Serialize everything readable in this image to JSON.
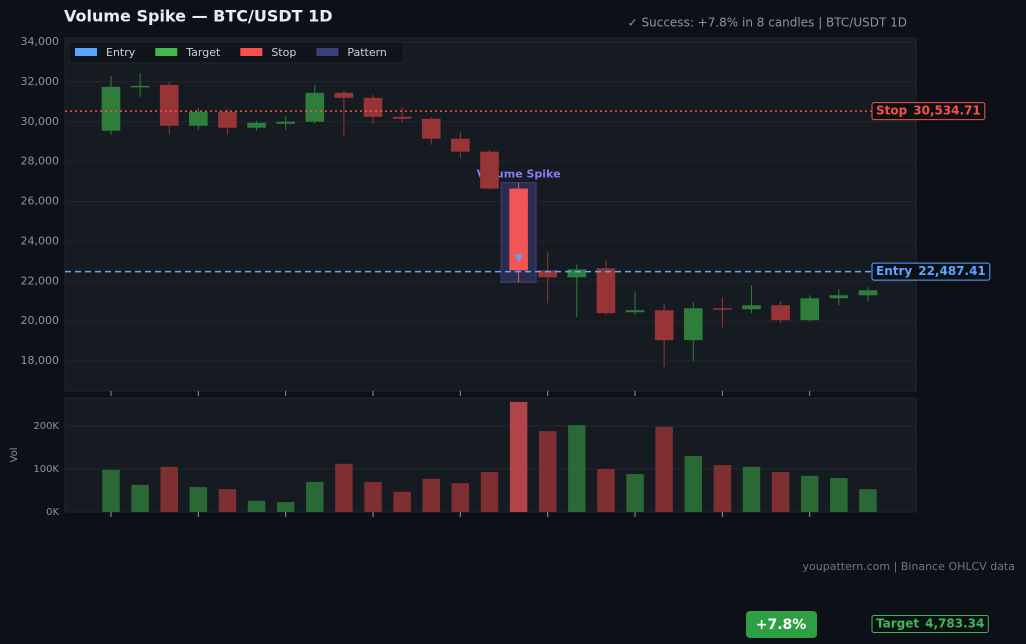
{
  "chart_data": [
    {
      "type": "candlestick",
      "title": "Volume Spike  —  BTC/USDT 1D",
      "subtitle": "✓ Success: +7.8% in 8 candles  |  BTC/USDT 1D",
      "open": [
        29550,
        31750,
        31850,
        29800,
        30500,
        29700,
        29900,
        30000,
        31450,
        31200,
        30250,
        30150,
        29150,
        28500,
        26650,
        22550,
        22200,
        22650,
        20450,
        20550,
        19050,
        20650,
        20600,
        20800,
        20050,
        21150,
        21300
      ],
      "high": [
        32300,
        32450,
        32000,
        30700,
        30650,
        30050,
        30300,
        31850,
        31550,
        31350,
        30750,
        30250,
        29500,
        28600,
        26950,
        23500,
        22850,
        23050,
        21500,
        20900,
        20950,
        21200,
        21800,
        21000,
        21300,
        21600,
        21700
      ],
      "low": [
        29350,
        31250,
        29350,
        29600,
        29350,
        29550,
        29600,
        29900,
        29250,
        29900,
        29950,
        28850,
        28200,
        26600,
        21950,
        20900,
        20200,
        20300,
        20300,
        17700,
        18000,
        19700,
        20400,
        19900,
        20000,
        20800,
        21000
      ],
      "close": [
        31750,
        31800,
        29800,
        30500,
        29700,
        29950,
        30000,
        31450,
        31200,
        30250,
        30150,
        29150,
        28500,
        26650,
        22550,
        22200,
        22600,
        20400,
        20550,
        19050,
        20650,
        20600,
        20800,
        20050,
        21150,
        21300,
        21550
      ],
      "up_color": "#2f7d3b",
      "down_color": "#973536",
      "highlight_color": "#f25555",
      "xlim": [
        -1.58,
        27.65
      ],
      "xticks": [
        0,
        3,
        6,
        9,
        12,
        15,
        18,
        21,
        24
      ],
      "ylim": [
        16500,
        34200
      ],
      "yticks": [
        {
          "value": 18000,
          "label": "18,000"
        },
        {
          "value": 20000,
          "label": "20,000"
        },
        {
          "value": 22000,
          "label": "22,000"
        },
        {
          "value": 24000,
          "label": "24,000"
        },
        {
          "value": 26000,
          "label": "26,000"
        },
        {
          "value": 28000,
          "label": "28,000"
        },
        {
          "value": 30000,
          "label": "30,000"
        },
        {
          "value": 32000,
          "label": "32,000"
        },
        {
          "value": 34000,
          "label": "34,000"
        }
      ],
      "grid": true,
      "levels": [
        {
          "name": "Entry",
          "value": 22487.41,
          "value_label": "22,487.41",
          "color": "#58a6ff",
          "dash": "6 4"
        },
        {
          "name": "Target",
          "value": 4783.34,
          "value_label": "4,783.34",
          "color": "#3fb950",
          "dash": "2 3"
        },
        {
          "name": "Stop",
          "value": 30534.71,
          "value_label": "30,534.71",
          "color": "#f85149",
          "dash": "2 3"
        }
      ],
      "pattern": {
        "name": "Pattern",
        "label": "Volume Spike",
        "index": 14,
        "color": "#3d3f7a"
      },
      "legend": "upper left",
      "badge": "+7.8%",
      "footer": "youpattern.com  |  Binance OHLCV data"
    },
    {
      "type": "bar",
      "ylabel": "Vol",
      "values": [
        98000,
        63000,
        105000,
        58000,
        53000,
        26000,
        23000,
        70000,
        112000,
        70000,
        47000,
        77000,
        67000,
        93000,
        256000,
        188000,
        202000,
        100000,
        88000,
        198000,
        130000,
        109000,
        105000,
        93000,
        84000,
        79000,
        53000
      ],
      "ylim": [
        0,
        265000
      ],
      "yticks": [
        {
          "value": 0,
          "label": "0K"
        },
        {
          "value": 100000,
          "label": "100K"
        },
        {
          "value": 200000,
          "label": "200K"
        }
      ]
    }
  ]
}
